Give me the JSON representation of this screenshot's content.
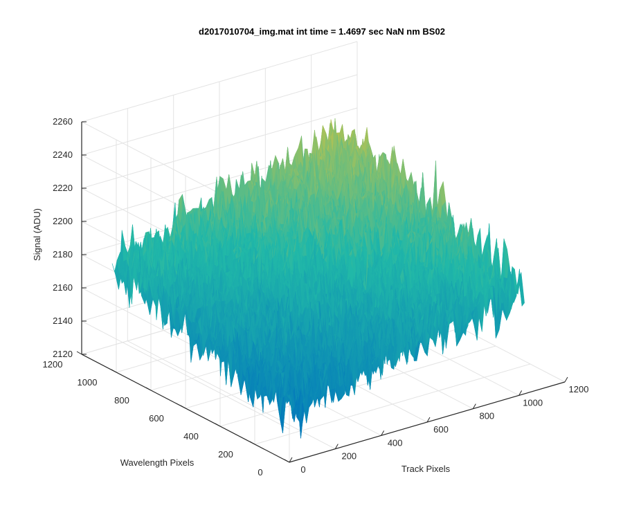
{
  "chart_data": {
    "type": "surface",
    "title": "d2017010704_img.mat int time = 1.4697 sec  NaN nm BS02",
    "xlabel": "Track Pixels",
    "ylabel": "Wavelength Pixels",
    "zlabel": "Signal (ADU)",
    "xlim": [
      0,
      1200
    ],
    "ylim": [
      0,
      1200
    ],
    "zlim": [
      2120,
      2260
    ],
    "xticks": [
      "0",
      "200",
      "400",
      "600",
      "800",
      "1000",
      "1200"
    ],
    "yticks": [
      "0",
      "200",
      "400",
      "600",
      "800",
      "1000",
      "1200"
    ],
    "zticks": [
      "2120",
      "2140",
      "2160",
      "2180",
      "2200",
      "2220",
      "2240",
      "2260"
    ],
    "grid": true,
    "colormap": "parula",
    "surface_extent": {
      "x": [
        0,
        1024
      ],
      "y": [
        0,
        1024
      ]
    },
    "surface_profile": {
      "corner_means": {
        "x0_y0": 2150,
        "x1024_y0": 2185,
        "x0_y1024": 2185,
        "x1024_y1024": 2220
      },
      "noise_amplitude": 20,
      "peak": {
        "x": 1024,
        "y": 1024,
        "z": 2255
      },
      "min": {
        "x": 0,
        "y": 0,
        "z": 2128
      }
    },
    "colors": {
      "low": "#0072BD",
      "mid": "#21B8A8",
      "high": "#EDC631"
    }
  }
}
